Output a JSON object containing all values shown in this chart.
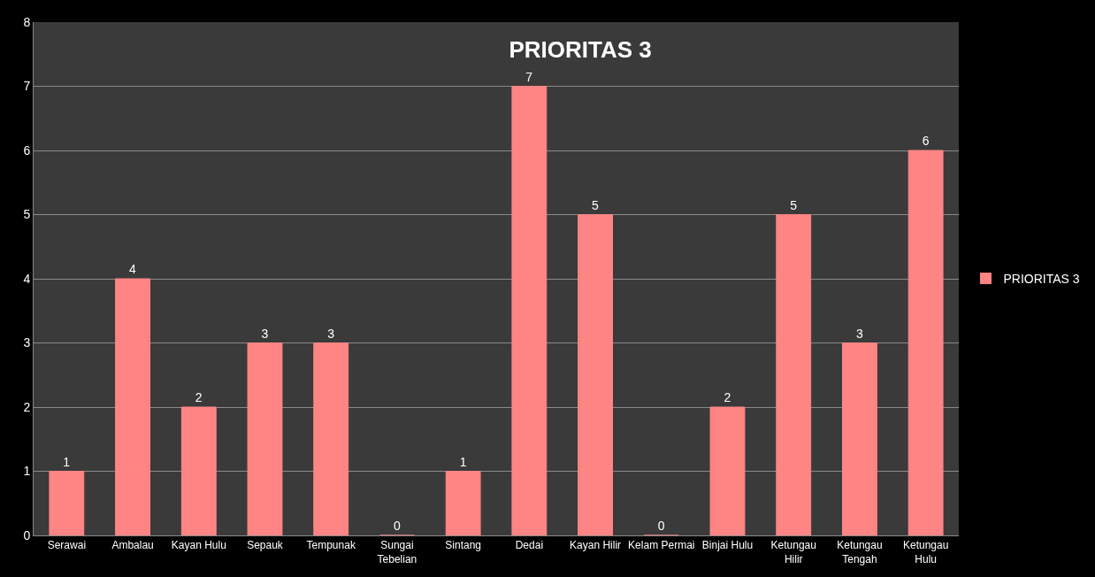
{
  "chart_data": {
    "type": "bar",
    "title": "PRIORITAS 3",
    "categories": [
      "Serawai",
      "Ambalau",
      "Kayan Hulu",
      "Sepauk",
      "Tempunak",
      "Sungai Tebelian",
      "Sintang",
      "Dedai",
      "Kayan Hilir",
      "Kelam Permai",
      "Binjai Hulu",
      "Ketungau Hilir",
      "Ketungau Tengah",
      "Ketungau Hulu"
    ],
    "series": [
      {
        "name": "PRIORITAS 3",
        "color": "#ff8585",
        "values": [
          1,
          4,
          2,
          3,
          3,
          0,
          1,
          7,
          5,
          0,
          2,
          5,
          3,
          6
        ]
      }
    ],
    "ylim": [
      0,
      8
    ],
    "yticks": [
      0,
      1,
      2,
      3,
      4,
      5,
      6,
      7,
      8
    ],
    "grid": "y",
    "legend": "right",
    "data_labels": true
  }
}
